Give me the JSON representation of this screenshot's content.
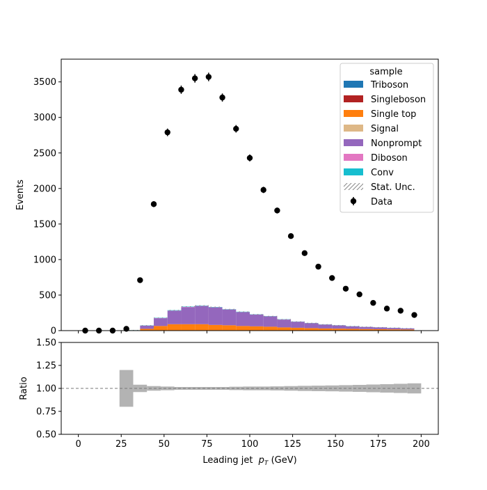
{
  "chart_data": {
    "type": "bar",
    "stacked_hist": true,
    "x_bin_edges": [
      28,
      36,
      44,
      52,
      60,
      68,
      76,
      84,
      92,
      100,
      108,
      116,
      124,
      132,
      140,
      148,
      156,
      164,
      172,
      180,
      188,
      196
    ],
    "series": [
      {
        "name": "Triboson",
        "color": "#1f77b4",
        "values": [
          0,
          0,
          0,
          0,
          0,
          0,
          0,
          0,
          0,
          0,
          0,
          0,
          0,
          0,
          0,
          0,
          0,
          0,
          0,
          0,
          0
        ]
      },
      {
        "name": "Singleboson",
        "color": "#b22222",
        "values": [
          0,
          0,
          0,
          0,
          0,
          0,
          0,
          0,
          0,
          0,
          0,
          0,
          0,
          0,
          0,
          0,
          0,
          0,
          0,
          0,
          0
        ]
      },
      {
        "name": "Single top",
        "color": "#ff7f0e",
        "values": [
          5,
          25,
          65,
          90,
          90,
          90,
          80,
          75,
          65,
          60,
          55,
          45,
          40,
          35,
          30,
          28,
          25,
          22,
          20,
          18,
          16
        ]
      },
      {
        "name": "Signal",
        "color": "#deb887",
        "values": [
          0,
          0,
          0,
          0,
          0,
          0,
          0,
          0,
          0,
          0,
          0,
          0,
          0,
          0,
          0,
          0,
          0,
          0,
          0,
          0,
          0
        ]
      },
      {
        "name": "Nonprompt",
        "color": "#9467bd",
        "values": [
          0,
          45,
          110,
          190,
          240,
          255,
          245,
          220,
          195,
          165,
          145,
          110,
          85,
          70,
          55,
          45,
          35,
          30,
          25,
          20,
          15
        ]
      },
      {
        "name": "Diboson",
        "color": "#e377c2",
        "values": [
          0,
          1,
          2,
          2,
          3,
          3,
          3,
          3,
          2,
          2,
          2,
          2,
          1,
          1,
          1,
          1,
          1,
          1,
          1,
          1,
          1
        ]
      },
      {
        "name": "Conv",
        "color": "#17becf",
        "values": [
          1,
          3,
          4,
          5,
          5,
          5,
          5,
          4,
          4,
          3,
          3,
          3,
          2,
          2,
          2,
          2,
          2,
          1,
          1,
          1,
          1
        ]
      }
    ],
    "data_points": {
      "name": "Data",
      "x": [
        4,
        12,
        20,
        28,
        36,
        44,
        52,
        60,
        68,
        76,
        84,
        92,
        100,
        108,
        116,
        124,
        132,
        140,
        148,
        156,
        164,
        172,
        180,
        188,
        196
      ],
      "y": [
        0,
        0,
        0,
        25,
        710,
        1780,
        2790,
        3390,
        3550,
        3570,
        3280,
        2840,
        2430,
        1980,
        1690,
        1330,
        1090,
        900,
        740,
        590,
        510,
        390,
        310,
        280,
        220
      ],
      "yerr": [
        0,
        0,
        0,
        5,
        27,
        42,
        53,
        58,
        60,
        60,
        57,
        53,
        49,
        44,
        41,
        36,
        33,
        30,
        27,
        24,
        23,
        20,
        18,
        17,
        15
      ]
    },
    "ratio_panel": {
      "ylabel": "Ratio",
      "ylim": [
        0.5,
        1.5
      ],
      "yticks": [
        "0.50",
        "0.75",
        "1.00",
        "1.25",
        "1.50"
      ],
      "reference_line": 1.0,
      "unc_x_edges": [
        24,
        32,
        40,
        48,
        56,
        64,
        72,
        80,
        88,
        96,
        104,
        112,
        120,
        128,
        136,
        144,
        152,
        160,
        168,
        176,
        184,
        192,
        200
      ],
      "unc_half_width": [
        0.2,
        0.04,
        0.025,
        0.02,
        0.015,
        0.015,
        0.015,
        0.015,
        0.018,
        0.02,
        0.02,
        0.022,
        0.025,
        0.028,
        0.03,
        0.032,
        0.035,
        0.038,
        0.042,
        0.046,
        0.05,
        0.055,
        0.07
      ]
    },
    "xlim": [
      -10,
      210
    ],
    "ylim": [
      0,
      3820
    ],
    "xticks": [
      "0",
      "25",
      "50",
      "75",
      "100",
      "125",
      "150",
      "175",
      "200"
    ],
    "yticks": [
      "0",
      "500",
      "1000",
      "1500",
      "2000",
      "2500",
      "3000",
      "3500"
    ],
    "ylabel": "Events",
    "xlabel_prefix": "Leading jet",
    "xlabel_var": "p",
    "xlabel_sub": "T",
    "xlabel_unit": "(GeV)",
    "legend": {
      "title": "sample",
      "placement": "top-right",
      "stat_unc_label": "Stat. Unc.",
      "data_label": "Data"
    },
    "stat_unc_color": "#888888"
  }
}
